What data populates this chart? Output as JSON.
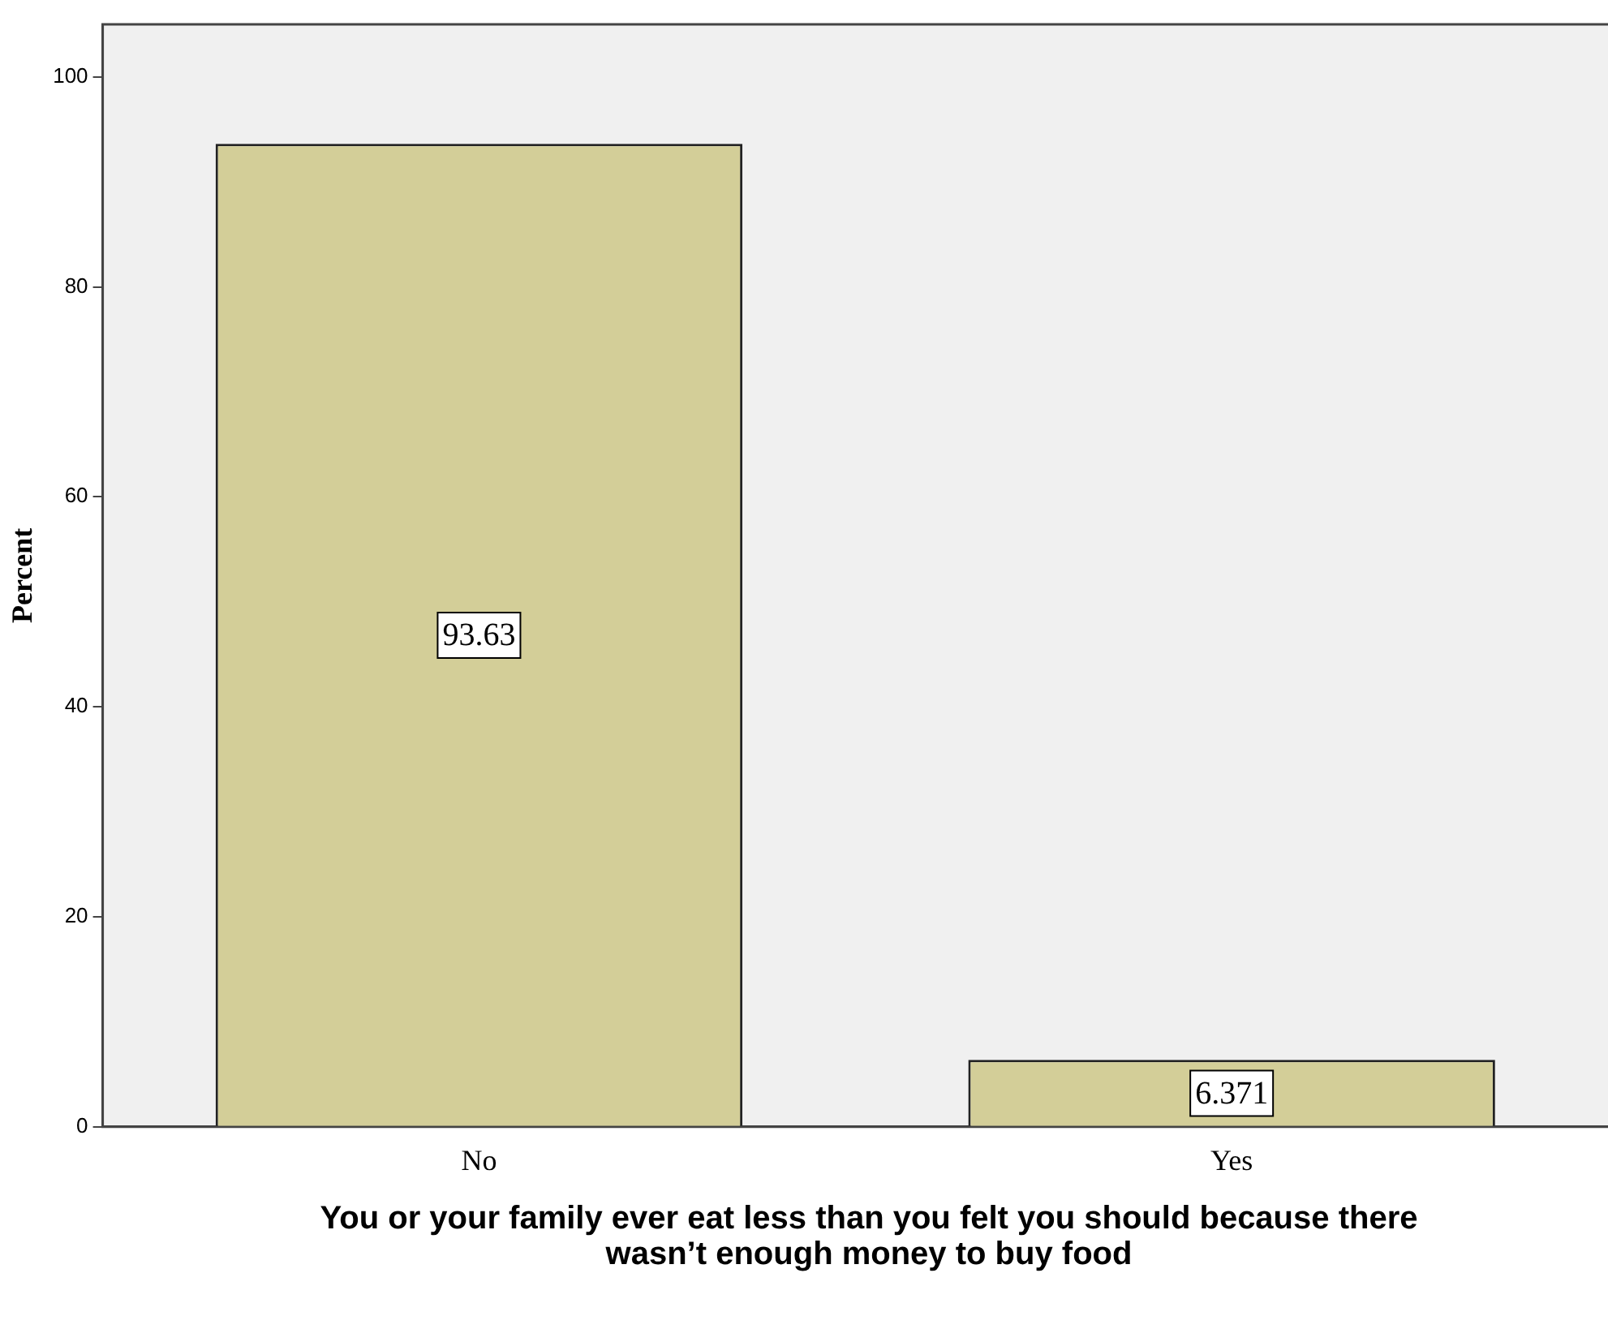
{
  "chart_data": {
    "type": "bar",
    "xlabel": "You or your family ever eat less than you felt you should because there wasn’t enough money to buy food",
    "ylabel": "Percent",
    "categories": [
      "No",
      "Yes"
    ],
    "values": [
      93.63,
      6.371
    ],
    "color": "#d3ce98",
    "data_labels": true,
    "ylim": [
      0,
      105
    ],
    "yticks": [
      0,
      20,
      40,
      60,
      80,
      100
    ],
    "grid": false,
    "legend": false
  }
}
